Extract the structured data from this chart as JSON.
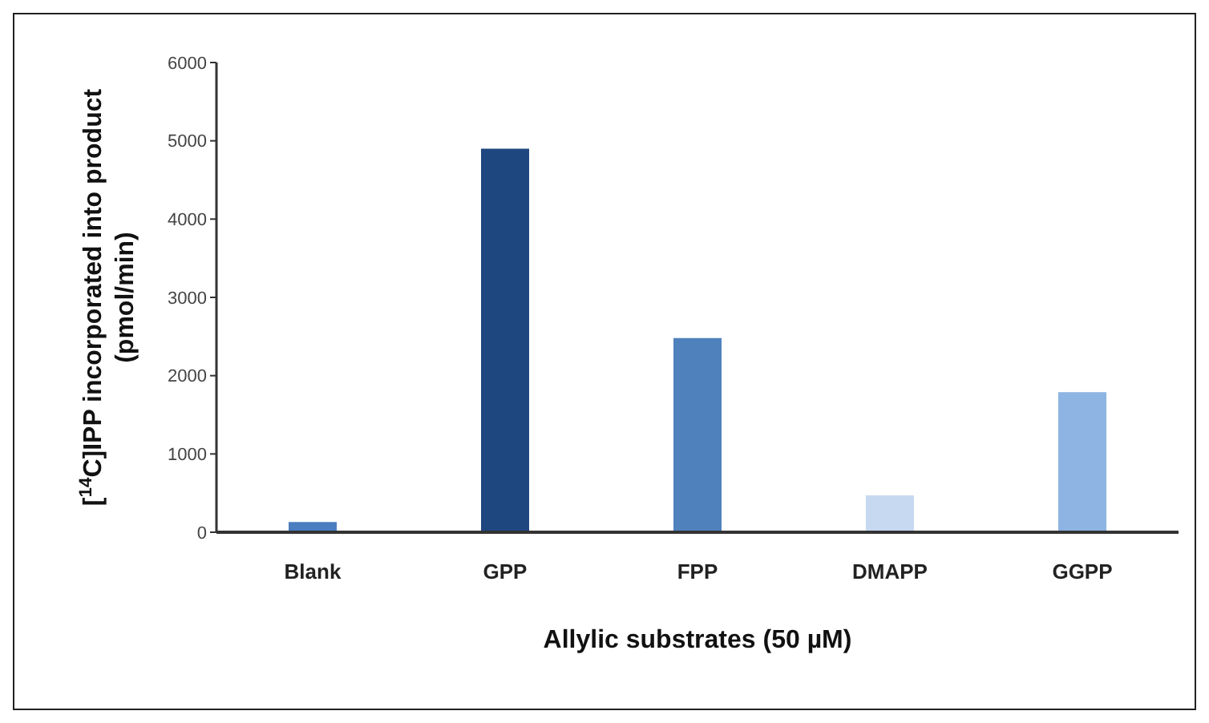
{
  "chart_data": {
    "type": "bar",
    "xlabel": "Allylic substrates (50 µM)",
    "ylabel": "[$^{14}$C]IPP incorporated into product (pmol/min)",
    "categories": [
      "Blank",
      "GPP",
      "FPP",
      "DMAPP",
      "GGPP"
    ],
    "values": [
      130,
      4900,
      2480,
      470,
      1790
    ],
    "colors": [
      "#4a7ec0",
      "#1f477f",
      "#4f82bd",
      "#c6d9f1",
      "#8db4e2"
    ],
    "ylim": [
      0,
      6000
    ],
    "yticks": [
      0,
      1000,
      2000,
      3000,
      4000,
      5000,
      6000
    ],
    "grid": false,
    "legend": false
  }
}
